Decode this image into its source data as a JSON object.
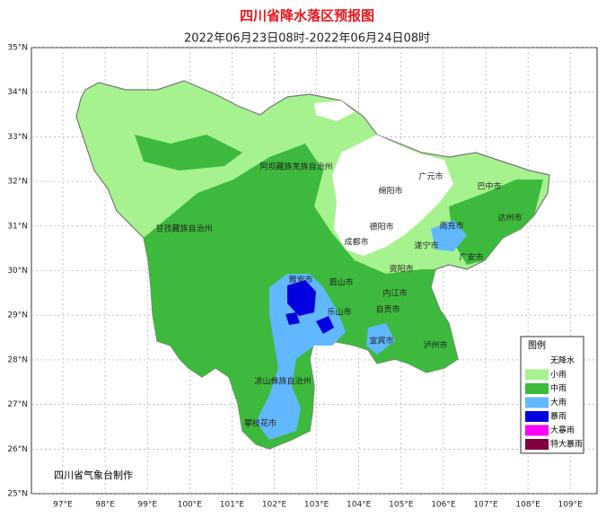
{
  "title": "四川省降水落区预报图",
  "subtitle": "2022年06月23日08时-2022年06月24日08时",
  "lat_labels": [
    "35°N",
    "34°N",
    "33°N",
    "32°N",
    "31°N",
    "30°N",
    "29°N",
    "28°N",
    "27°N",
    "26°N",
    "25°N"
  ],
  "lon_labels": [
    "97°E",
    "98°E",
    "99°E",
    "100°E",
    "101°E",
    "102°E",
    "103°E",
    "104°E",
    "105°E",
    "106°E",
    "107°E",
    "108°E",
    "109°E"
  ],
  "regions": [
    "阿坝藏族羌族自治州",
    "甘孜藏族自治州",
    "绵阳市",
    "广元市",
    "巴中市",
    "达州市",
    "德阳市",
    "成都市",
    "南充市",
    "遂宁市",
    "广安市",
    "资阳市",
    "雅安市",
    "眉山市",
    "内江市",
    "乐山市",
    "自贡市",
    "宜宾市",
    "泸州市",
    "凉山彝族自治州",
    "攀枝花市"
  ],
  "legend": {
    "title": "图例",
    "items": [
      {
        "label": "无降水",
        "color": "#ffffff"
      },
      {
        "label": "小雨",
        "color": "#a6f28f"
      },
      {
        "label": "中雨",
        "color": "#3dba3d"
      },
      {
        "label": "大雨",
        "color": "#61b8ff"
      },
      {
        "label": "暴雨",
        "color": "#0000e1"
      },
      {
        "label": "大暴雨",
        "color": "#fa00fa"
      },
      {
        "label": "特大暴雨",
        "color": "#800040"
      }
    ]
  },
  "credit": "四川省气象台制作"
}
